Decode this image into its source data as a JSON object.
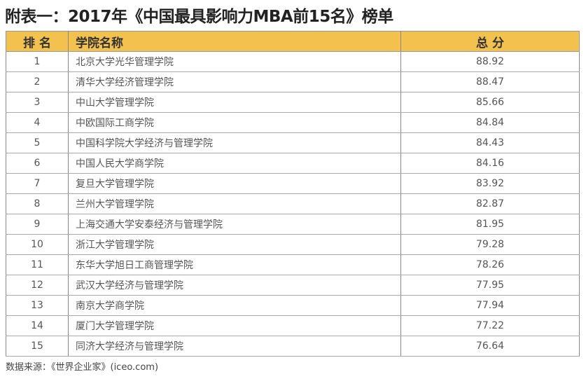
{
  "title": "附表一：2017年《中国最具影响力MBA前15名》榜单",
  "table": {
    "headers": [
      "排 名",
      "学院名称",
      "总 分"
    ],
    "header_color": "#f2c14e",
    "rows": [
      [
        "1",
        "北京大学光华管理学院",
        "88.92"
      ],
      [
        "2",
        "清华大学经济管理学院",
        "88.47"
      ],
      [
        "3",
        "中山大学管理学院",
        "85.66"
      ],
      [
        "4",
        "中欧国际工商学院",
        "84.84"
      ],
      [
        "5",
        "中国科学院大学经济与管理学院",
        "84.43"
      ],
      [
        "6",
        "中国人民大学商学院",
        "84.16"
      ],
      [
        "7",
        "复旦大学管理学院",
        "83.92"
      ],
      [
        "8",
        "兰州大学管理学院",
        "82.87"
      ],
      [
        "9",
        "上海交通大学安泰经济与管理学院",
        "81.95"
      ],
      [
        "10",
        "浙江大学管理学院",
        "79.28"
      ],
      [
        "11",
        "东华大学旭日工商管理学院",
        "78.26"
      ],
      [
        "12",
        "武汉大学经济与管理学院",
        "77.95"
      ],
      [
        "13",
        "南京大学商学院",
        "77.94"
      ],
      [
        "14",
        "厦门大学管理学院",
        "77.22"
      ],
      [
        "15",
        "同济大学经济与管理学院",
        "76.64"
      ]
    ]
  },
  "source": "数据来源：《世界企业家》(iceo.com)"
}
